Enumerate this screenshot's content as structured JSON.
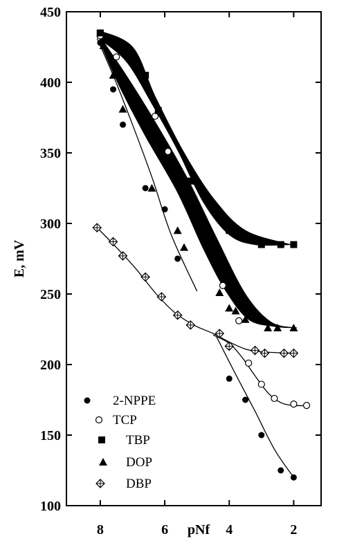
{
  "chart_data": {
    "type": "scatter",
    "xlabel": "pNf",
    "ylabel": "E, mV",
    "xlim": [
      9.05,
      1.15
    ],
    "ylim": [
      100,
      450
    ],
    "x_reversed": true,
    "xticks": [
      8,
      6,
      4,
      2
    ],
    "yticks": [
      100,
      150,
      200,
      250,
      300,
      350,
      400,
      450
    ],
    "grid": false,
    "legend_position": "lower-left",
    "series": [
      {
        "name": "2-NPPE",
        "marker": "filled-circle",
        "color": "#000000",
        "points": [
          [
            8.0,
            428
          ],
          [
            7.6,
            395
          ],
          [
            7.3,
            370
          ],
          [
            6.6,
            325
          ],
          [
            6.0,
            310
          ],
          [
            5.6,
            275
          ],
          [
            4.0,
            190
          ],
          [
            3.5,
            175
          ],
          [
            3.0,
            150
          ],
          [
            2.4,
            125
          ],
          [
            2.0,
            120
          ]
        ],
        "fit_lines": [
          [
            [
              8.1,
              431
            ],
            [
              7.6,
              405
            ],
            [
              7.0,
              370
            ],
            [
              6.4,
              333
            ],
            [
              5.8,
              292
            ],
            [
              5.0,
              252
            ]
          ],
          [
            [
              4.4,
              220
            ],
            [
              3.8,
              193
            ],
            [
              3.2,
              167
            ],
            [
              2.6,
              140
            ],
            [
              2.0,
              120
            ]
          ]
        ]
      },
      {
        "name": "TCP",
        "marker": "open-circle",
        "color": "#000000",
        "points": [
          [
            8.0,
            433
          ],
          [
            7.5,
            418
          ],
          [
            6.3,
            376
          ],
          [
            5.9,
            351
          ],
          [
            4.2,
            256
          ],
          [
            3.7,
            231
          ],
          [
            3.4,
            201
          ],
          [
            3.0,
            186
          ],
          [
            2.6,
            176
          ],
          [
            2.0,
            172
          ],
          [
            1.6,
            171
          ]
        ],
        "fit_lines": [
          [
            [
              4.5,
              221
            ],
            [
              4.0,
              215
            ],
            [
              3.6,
              205
            ],
            [
              3.2,
              192
            ],
            [
              2.8,
              180
            ],
            [
              2.4,
              173
            ],
            [
              2.0,
              171
            ],
            [
              1.5,
              171
            ]
          ]
        ]
      },
      {
        "name": "TBP",
        "marker": "filled-square",
        "color": "#000000",
        "points": [
          [
            8.0,
            435
          ],
          [
            7.3,
            425
          ],
          [
            6.6,
            405
          ],
          [
            6.2,
            380
          ],
          [
            5.2,
            330
          ],
          [
            4.0,
            295
          ],
          [
            3.5,
            290
          ],
          [
            3.0,
            285
          ],
          [
            2.4,
            285
          ],
          [
            2.0,
            285
          ]
        ]
      },
      {
        "name": "DOP",
        "marker": "filled-triangle",
        "color": "#000000",
        "points": [
          [
            7.9,
            426
          ],
          [
            7.6,
            405
          ],
          [
            7.3,
            381
          ],
          [
            6.4,
            325
          ],
          [
            5.6,
            295
          ],
          [
            5.4,
            283
          ],
          [
            4.3,
            251
          ],
          [
            4.0,
            240
          ],
          [
            3.8,
            238
          ],
          [
            3.5,
            232
          ],
          [
            2.8,
            226
          ],
          [
            2.5,
            226
          ],
          [
            2.0,
            226
          ]
        ]
      },
      {
        "name": "DBP",
        "marker": "crossed-diamond",
        "color": "#000000",
        "points": [
          [
            8.1,
            297
          ],
          [
            7.6,
            287
          ],
          [
            7.3,
            277
          ],
          [
            6.6,
            262
          ],
          [
            6.1,
            248
          ],
          [
            5.6,
            235
          ],
          [
            5.2,
            228
          ],
          [
            4.3,
            222
          ],
          [
            4.0,
            213
          ],
          [
            3.2,
            210
          ],
          [
            2.9,
            208
          ],
          [
            2.3,
            208
          ],
          [
            2.0,
            208
          ]
        ],
        "fit_lines": [
          [
            [
              8.1,
              297
            ],
            [
              7.5,
              283
            ],
            [
              6.9,
              268
            ],
            [
              6.3,
              251
            ],
            [
              5.7,
              237
            ],
            [
              5.1,
              228
            ],
            [
              4.5,
              222
            ],
            [
              4.0,
              216
            ],
            [
              3.5,
              211
            ],
            [
              3.0,
              209
            ],
            [
              2.0,
              208
            ]
          ]
        ]
      }
    ],
    "filled_regions": [
      {
        "name": "TBP",
        "upper": [
          [
            8.1,
            437
          ],
          [
            7.0,
            425
          ],
          [
            6.3,
            390
          ],
          [
            5.4,
            350
          ],
          [
            4.5,
            318
          ],
          [
            3.5,
            295
          ],
          [
            2.1,
            285
          ]
        ],
        "lower": [
          [
            8.1,
            432
          ],
          [
            7.2,
            415
          ],
          [
            6.4,
            385
          ],
          [
            5.6,
            352
          ],
          [
            4.8,
            315
          ],
          [
            4.0,
            292
          ],
          [
            3.2,
            285
          ],
          [
            2.1,
            285
          ]
        ]
      },
      {
        "name": "DOP",
        "upper": [
          [
            8.0,
            432
          ],
          [
            7.2,
            405
          ],
          [
            6.3,
            372
          ],
          [
            5.3,
            332
          ],
          [
            4.4,
            290
          ],
          [
            3.5,
            250
          ],
          [
            2.7,
            230
          ],
          [
            1.9,
            226
          ]
        ],
        "lower": [
          [
            8.0,
            428
          ],
          [
            7.4,
            397
          ],
          [
            6.6,
            362
          ],
          [
            5.6,
            322
          ],
          [
            4.8,
            282
          ],
          [
            4.1,
            252
          ],
          [
            3.4,
            232
          ],
          [
            2.6,
            227
          ],
          [
            1.9,
            226
          ]
        ]
      }
    ],
    "legend_entries": [
      "2-NPPE",
      "TCP",
      "TBP",
      "DOP",
      "DBP"
    ]
  }
}
